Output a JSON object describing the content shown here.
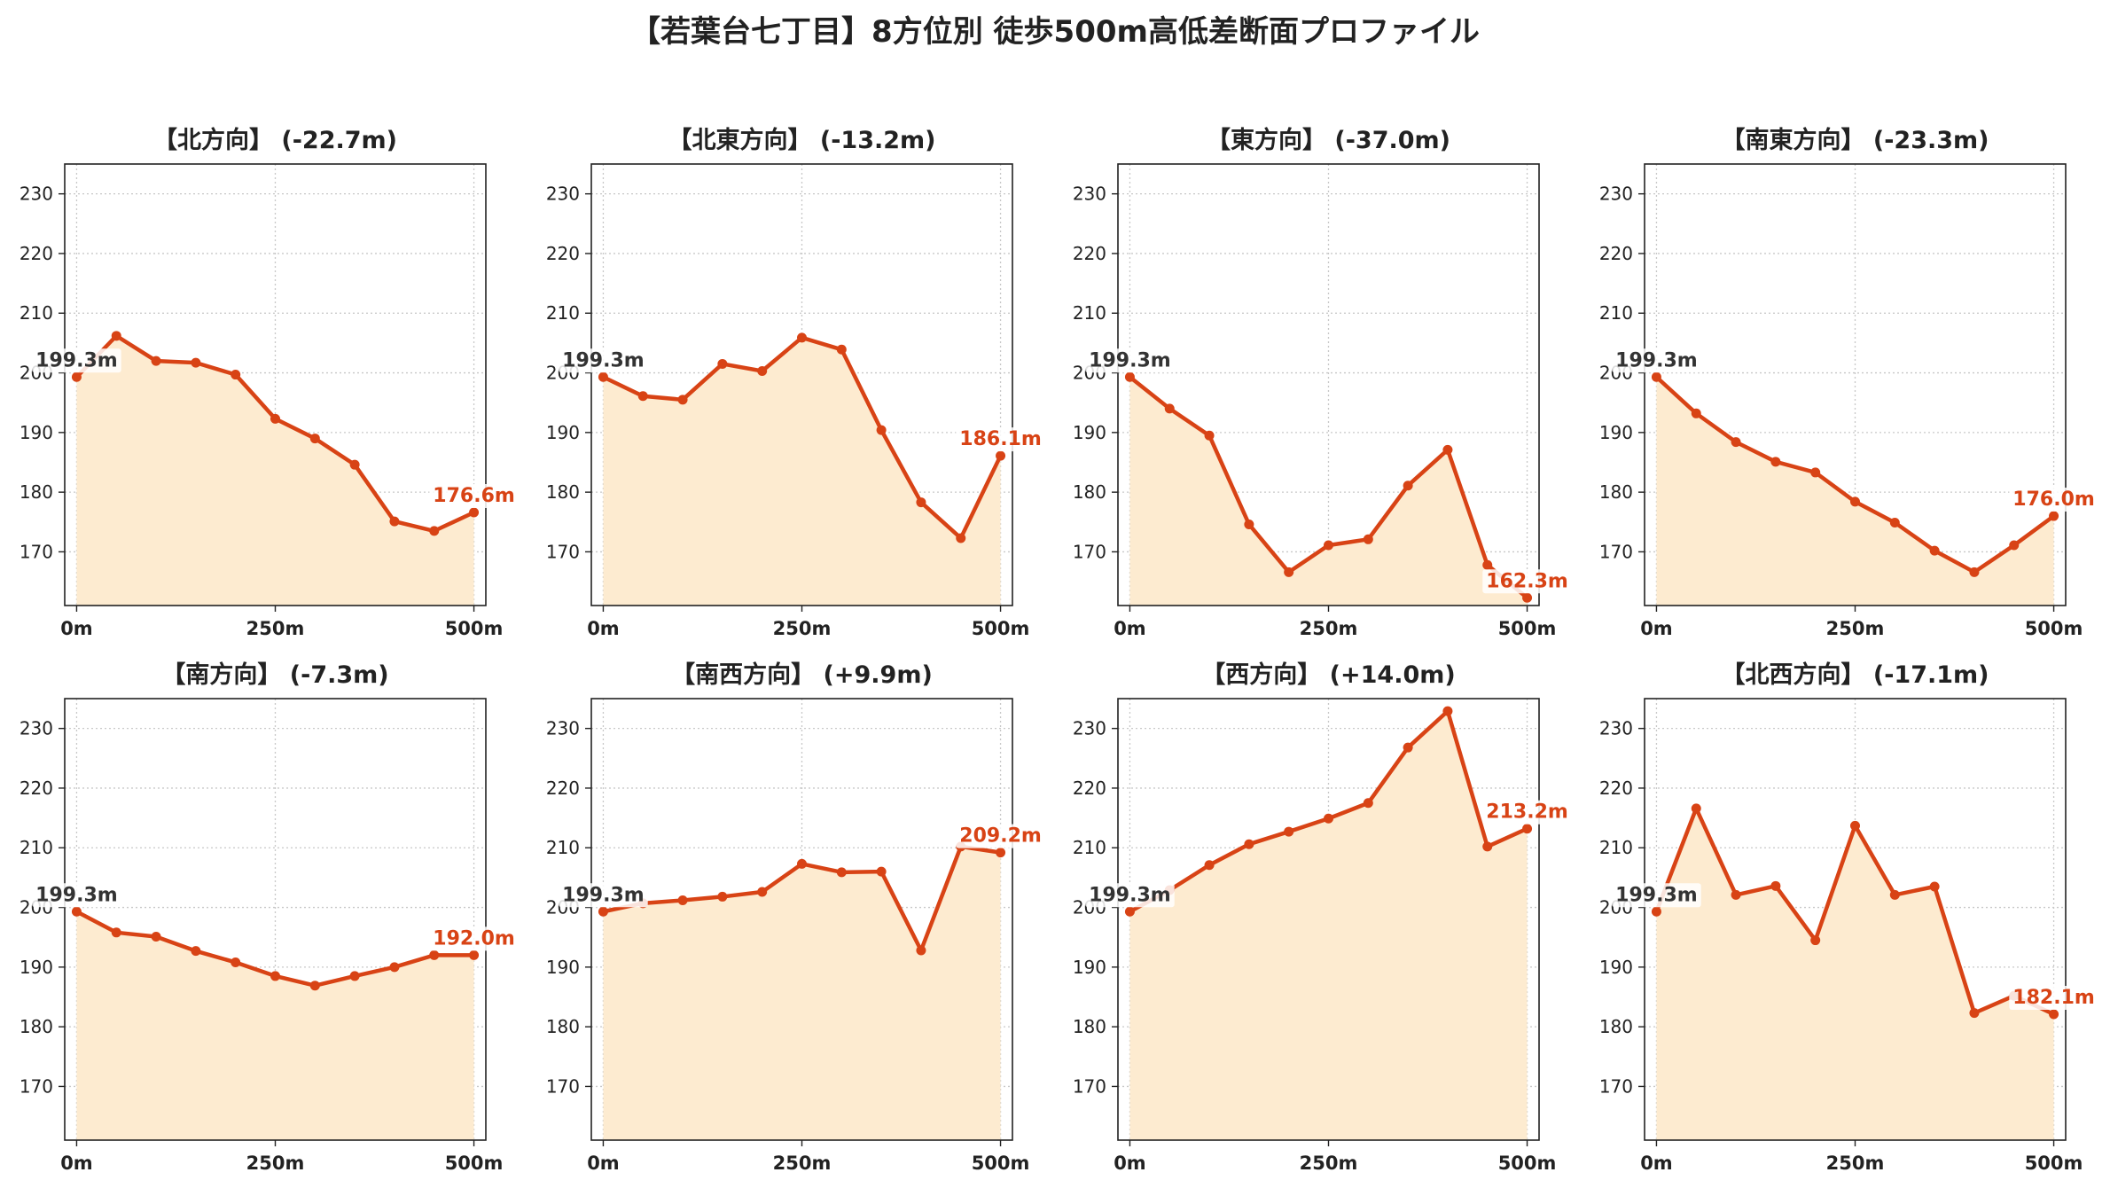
{
  "figure": {
    "title": "【若葉台七丁目】8方位別 徒歩500m高低差断面プロファイル"
  },
  "colors": {
    "line": "#d84315",
    "fill": "#fdebd0",
    "start_label": "#333333",
    "grid": "#c8c8c8",
    "axis": "#222222"
  },
  "chart_data": [
    {
      "type": "area",
      "title": "【北方向】 (-22.7m)",
      "x": [
        0,
        50,
        100,
        150,
        200,
        250,
        300,
        350,
        400,
        450,
        500
      ],
      "values": [
        199.3,
        206.2,
        202.0,
        201.7,
        199.7,
        192.3,
        189.0,
        184.6,
        175.1,
        173.5,
        176.6
      ],
      "start_label": "199.3m",
      "end_label": "176.6m",
      "xticks": [
        "0m",
        "250m",
        "500m"
      ],
      "yticks": [
        "170",
        "180",
        "190",
        "200",
        "210",
        "220",
        "230"
      ],
      "xlim": [
        -15,
        515
      ],
      "ylim": [
        161,
        235
      ],
      "grid": true
    },
    {
      "type": "area",
      "title": "【北東方向】 (-13.2m)",
      "x": [
        0,
        50,
        100,
        150,
        200,
        250,
        300,
        350,
        400,
        450,
        500
      ],
      "values": [
        199.3,
        196.1,
        195.5,
        201.5,
        200.3,
        205.9,
        203.9,
        190.4,
        178.3,
        172.3,
        186.1
      ],
      "start_label": "199.3m",
      "end_label": "186.1m",
      "xticks": [
        "0m",
        "250m",
        "500m"
      ],
      "yticks": [
        "170",
        "180",
        "190",
        "200",
        "210",
        "220",
        "230"
      ],
      "xlim": [
        -15,
        515
      ],
      "ylim": [
        161,
        235
      ],
      "grid": true
    },
    {
      "type": "area",
      "title": "【東方向】 (-37.0m)",
      "x": [
        0,
        50,
        100,
        150,
        200,
        250,
        300,
        350,
        400,
        450,
        500
      ],
      "values": [
        199.3,
        194.0,
        189.5,
        174.6,
        166.6,
        171.1,
        172.1,
        181.1,
        187.1,
        167.8,
        162.3
      ],
      "start_label": "199.3m",
      "end_label": "162.3m",
      "xticks": [
        "0m",
        "250m",
        "500m"
      ],
      "yticks": [
        "170",
        "180",
        "190",
        "200",
        "210",
        "220",
        "230"
      ],
      "xlim": [
        -15,
        515
      ],
      "ylim": [
        161,
        235
      ],
      "grid": true
    },
    {
      "type": "area",
      "title": "【南東方向】 (-23.3m)",
      "x": [
        0,
        50,
        100,
        150,
        200,
        250,
        300,
        350,
        400,
        450,
        500
      ],
      "values": [
        199.3,
        193.2,
        188.4,
        185.1,
        183.3,
        178.4,
        174.9,
        170.2,
        166.6,
        171.1,
        176.0
      ],
      "start_label": "199.3m",
      "end_label": "176.0m",
      "xticks": [
        "0m",
        "250m",
        "500m"
      ],
      "yticks": [
        "170",
        "180",
        "190",
        "200",
        "210",
        "220",
        "230"
      ],
      "xlim": [
        -15,
        515
      ],
      "ylim": [
        161,
        235
      ],
      "grid": true
    },
    {
      "type": "area",
      "title": "【南方向】 (-7.3m)",
      "x": [
        0,
        50,
        100,
        150,
        200,
        250,
        300,
        350,
        400,
        450,
        500
      ],
      "values": [
        199.3,
        195.8,
        195.1,
        192.7,
        190.8,
        188.5,
        186.9,
        188.5,
        190.0,
        192.0,
        192.0
      ],
      "start_label": "199.3m",
      "end_label": "192.0m",
      "xticks": [
        "0m",
        "250m",
        "500m"
      ],
      "yticks": [
        "170",
        "180",
        "190",
        "200",
        "210",
        "220",
        "230"
      ],
      "xlim": [
        -15,
        515
      ],
      "ylim": [
        161,
        235
      ],
      "grid": true
    },
    {
      "type": "area",
      "title": "【南西方向】 (+9.9m)",
      "x": [
        0,
        50,
        100,
        150,
        200,
        250,
        300,
        350,
        400,
        450,
        500
      ],
      "values": [
        199.3,
        200.7,
        201.2,
        201.8,
        202.6,
        207.3,
        205.9,
        206.0,
        192.8,
        210.2,
        209.2
      ],
      "start_label": "199.3m",
      "end_label": "209.2m",
      "xticks": [
        "0m",
        "250m",
        "500m"
      ],
      "yticks": [
        "170",
        "180",
        "190",
        "200",
        "210",
        "220",
        "230"
      ],
      "xlim": [
        -15,
        515
      ],
      "ylim": [
        161,
        235
      ],
      "grid": true
    },
    {
      "type": "area",
      "title": "【西方向】 (+14.0m)",
      "x": [
        0,
        50,
        100,
        150,
        200,
        250,
        300,
        350,
        400,
        450,
        500
      ],
      "values": [
        199.3,
        202.9,
        207.1,
        210.6,
        212.7,
        214.9,
        217.5,
        226.8,
        232.9,
        210.2,
        213.2
      ],
      "start_label": "199.3m",
      "end_label": "213.2m",
      "xticks": [
        "0m",
        "250m",
        "500m"
      ],
      "yticks": [
        "170",
        "180",
        "190",
        "200",
        "210",
        "220",
        "230"
      ],
      "xlim": [
        -15,
        515
      ],
      "ylim": [
        161,
        235
      ],
      "grid": true
    },
    {
      "type": "area",
      "title": "【北西方向】 (-17.1m)",
      "x": [
        0,
        50,
        100,
        150,
        200,
        250,
        300,
        350,
        400,
        450,
        500
      ],
      "values": [
        199.3,
        216.6,
        202.1,
        203.6,
        194.5,
        213.7,
        202.1,
        203.5,
        182.3,
        185.2,
        182.1
      ],
      "start_label": "199.3m",
      "end_label": "182.1m",
      "xticks": [
        "0m",
        "250m",
        "500m"
      ],
      "yticks": [
        "170",
        "180",
        "190",
        "200",
        "210",
        "220",
        "230"
      ],
      "xlim": [
        -15,
        515
      ],
      "ylim": [
        161,
        235
      ],
      "grid": true
    }
  ]
}
